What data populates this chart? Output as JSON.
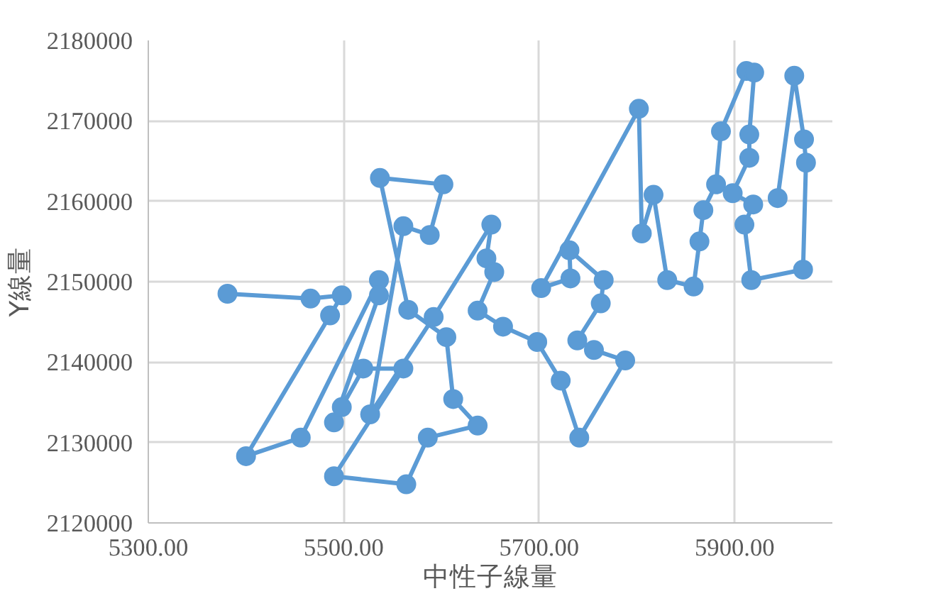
{
  "chart_data": {
    "type": "line",
    "xlabel": "中性子線量",
    "ylabel": "Y線量",
    "xlim": [
      5300,
      6000
    ],
    "ylim": [
      2120000,
      2180000
    ],
    "xticks": [
      {
        "value": 5300,
        "label": "5300.00"
      },
      {
        "value": 5500,
        "label": "5500.00"
      },
      {
        "value": 5700,
        "label": "5700.00"
      },
      {
        "value": 5900,
        "label": "5900.00"
      }
    ],
    "yticks": [
      2120000,
      2130000,
      2140000,
      2150000,
      2160000,
      2170000,
      2180000
    ],
    "grid": true,
    "marker": "circle",
    "line_style": "solid",
    "series": [
      {
        "color": "#5b9bd5",
        "x": [
          5381,
          5466,
          5498,
          5486,
          5400,
          5456,
          5536,
          5536,
          5490,
          5498,
          5520,
          5561,
          5490,
          5564,
          5586,
          5637,
          5612,
          5605,
          5566,
          5537,
          5602,
          5588,
          5561,
          5527,
          5592,
          5651,
          5646,
          5654,
          5637,
          5663,
          5698,
          5722,
          5741,
          5788,
          5756,
          5739,
          5763,
          5766,
          5731,
          5732,
          5702,
          5802,
          5805,
          5817,
          5831,
          5858,
          5864,
          5868,
          5881,
          5886,
          5912,
          5920,
          5915,
          5915,
          5898,
          5919,
          5910,
          5917,
          5970,
          5973,
          5971,
          5961,
          5944
        ],
        "values": [
          2148500,
          2147900,
          2148300,
          2145800,
          2128300,
          2130600,
          2150200,
          2148300,
          2132500,
          2134400,
          2139200,
          2139200,
          2125800,
          2124800,
          2130600,
          2132100,
          2135400,
          2143100,
          2146500,
          2162900,
          2162100,
          2155800,
          2156900,
          2133500,
          2145600,
          2157100,
          2152900,
          2151200,
          2146400,
          2144400,
          2142500,
          2137700,
          2130600,
          2140200,
          2141500,
          2142700,
          2147300,
          2150200,
          2153900,
          2150400,
          2149200,
          2171500,
          2156000,
          2160800,
          2150200,
          2149400,
          2155000,
          2158900,
          2162100,
          2168700,
          2176200,
          2176000,
          2168300,
          2165400,
          2161000,
          2159600,
          2157100,
          2150200,
          2151500,
          2164800,
          2167700,
          2175600,
          2160400
        ]
      }
    ]
  }
}
